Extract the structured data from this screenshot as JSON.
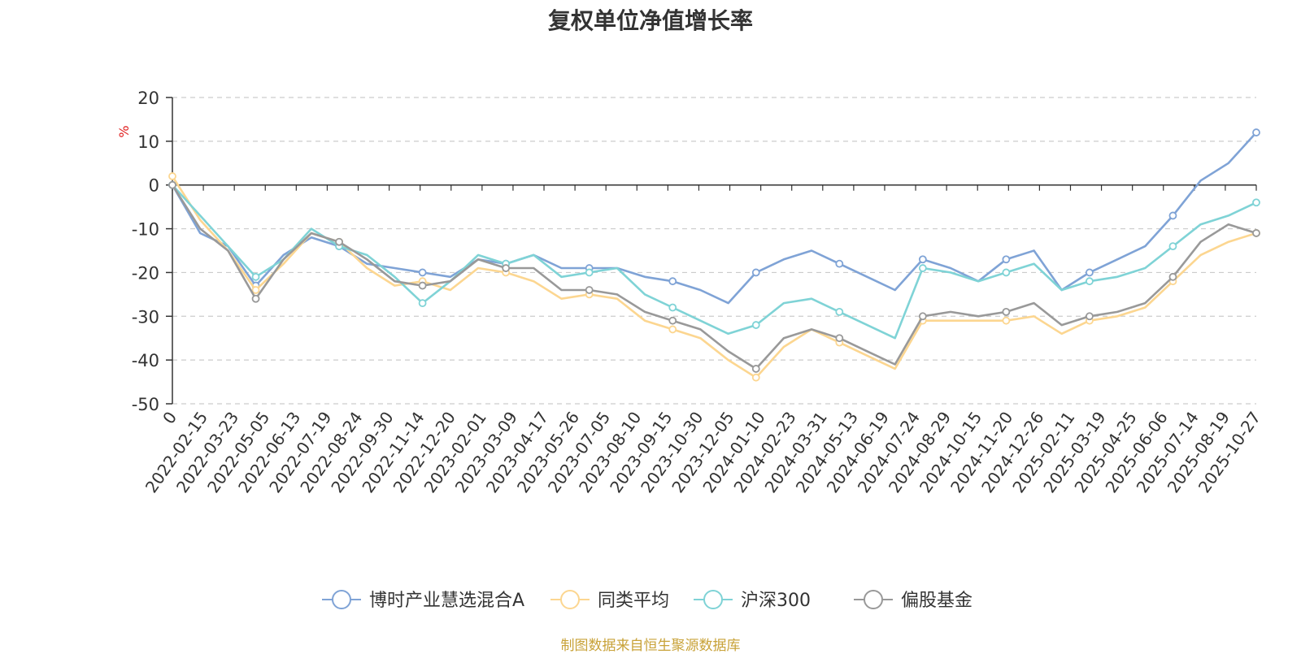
{
  "chart_data": {
    "type": "line",
    "title": "复权单位净值增长率",
    "ylabel": "%",
    "ylim": [
      -50,
      20
    ],
    "yticks": [
      20,
      10,
      0,
      -10,
      -20,
      -30,
      -40,
      -50
    ],
    "grid": true,
    "legend_position": "bottom-center",
    "x_tick_labels": [
      "0",
      "2022-02-15",
      "2022-03-23",
      "2022-05-05",
      "2022-06-13",
      "2022-07-19",
      "2022-08-24",
      "2022-09-30",
      "2022-11-14",
      "2022-12-20",
      "2023-02-01",
      "2023-03-09",
      "2023-04-17",
      "2023-05-26",
      "2023-07-05",
      "2023-08-10",
      "2023-09-15",
      "2023-10-30",
      "2023-12-05",
      "2024-01-10",
      "2024-02-23",
      "2024-03-31",
      "2024-05-13",
      "2024-06-19",
      "2024-07-24",
      "2024-08-29",
      "2024-10-15",
      "2024-11-20",
      "2024-12-26",
      "2025-02-11",
      "2025-03-19",
      "2025-04-25",
      "2025-06-06",
      "2025-07-14",
      "2025-08-19",
      "2025-10-27"
    ],
    "series": [
      {
        "name": "博时产业慧选混合A",
        "color": "#7fa3d6",
        "values": [
          0,
          -11,
          -14,
          -23,
          -16,
          -12,
          -14,
          -18,
          -19,
          -20,
          -21,
          -17,
          -18,
          -16,
          -19,
          -19,
          -19,
          -21,
          -22,
          -24,
          -27,
          -20,
          -17,
          -15,
          -18,
          -21,
          -24,
          -17,
          -19,
          -22,
          -17,
          -15,
          -24,
          -20,
          -17,
          -14,
          -7,
          1,
          5,
          12
        ]
      },
      {
        "name": "同类平均",
        "color": "#fcd690",
        "values": [
          2,
          -8,
          -15,
          -24,
          -18,
          -11,
          -13,
          -19,
          -23,
          -22,
          -24,
          -19,
          -20,
          -22,
          -26,
          -25,
          -26,
          -31,
          -33,
          -35,
          -40,
          -44,
          -37,
          -33,
          -36,
          -39,
          -42,
          -31,
          -31,
          -31,
          -31,
          -30,
          -34,
          -31,
          -30,
          -28,
          -22,
          -16,
          -13,
          -11
        ]
      },
      {
        "name": "沪深300",
        "color": "#7fd3d6",
        "values": [
          0,
          -7,
          -14,
          -21,
          -17,
          -10,
          -14,
          -16,
          -21,
          -27,
          -22,
          -16,
          -18,
          -16,
          -21,
          -20,
          -19,
          -25,
          -28,
          -31,
          -34,
          -32,
          -27,
          -26,
          -29,
          -32,
          -35,
          -19,
          -20,
          -22,
          -20,
          -18,
          -24,
          -22,
          -21,
          -19,
          -14,
          -9,
          -7,
          -4
        ]
      },
      {
        "name": "偏股基金",
        "color": "#999999",
        "values": [
          0,
          -10,
          -15,
          -26,
          -17,
          -11,
          -13,
          -17,
          -22,
          -23,
          -22,
          -17,
          -19,
          -19,
          -24,
          -24,
          -25,
          -29,
          -31,
          -33,
          -38,
          -42,
          -35,
          -33,
          -35,
          -38,
          -41,
          -30,
          -29,
          -30,
          -29,
          -27,
          -32,
          -30,
          -29,
          -27,
          -21,
          -13,
          -9,
          -11
        ]
      }
    ]
  },
  "footer": "制图数据来自恒生聚源数据库"
}
